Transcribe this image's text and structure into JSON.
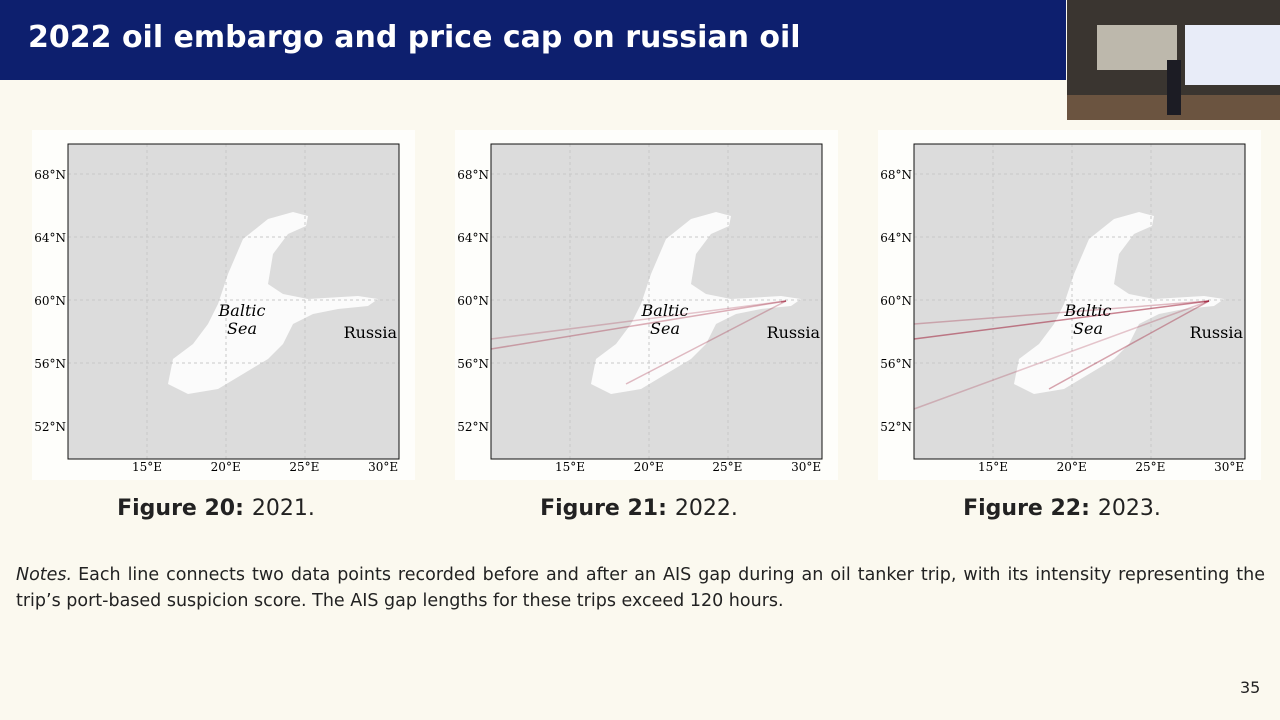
{
  "title": "2022 oil embargo and price cap on russian oil",
  "figures": [
    {
      "lat_labels": [
        "68°N",
        "64°N",
        "60°N",
        "56°N",
        "52°N"
      ],
      "lon_labels": [
        "15°E",
        "20°E",
        "25°E",
        "30°E"
      ],
      "sea_label": [
        "Baltic",
        "Sea"
      ],
      "country_label": "Russia",
      "caption": {
        "label": "Figure 20:",
        "text": "2021."
      }
    },
    {
      "lat_labels": [
        "68°N",
        "64°N",
        "60°N",
        "56°N",
        "52°N"
      ],
      "lon_labels": [
        "15°E",
        "20°E",
        "25°E",
        "30°E"
      ],
      "sea_label": [
        "Baltic",
        "Sea"
      ],
      "country_label": "Russia",
      "caption": {
        "label": "Figure 21:",
        "text": "2022."
      }
    },
    {
      "lat_labels": [
        "68°N",
        "64°N",
        "60°N",
        "56°N",
        "52°N"
      ],
      "lon_labels": [
        "15°E",
        "20°E",
        "25°E",
        "30°E"
      ],
      "sea_label": [
        "Baltic",
        "Sea"
      ],
      "country_label": "Russia",
      "caption": {
        "label": "Figure 22:",
        "text": "2023."
      }
    }
  ],
  "notes": {
    "label": "Notes.",
    "text": "Each line connects two data points recorded before and after an AIS gap during an oil tanker trip, with its intensity representing the trip’s port-based suspicion score. The AIS gap lengths for these trips exceed 120 hours."
  },
  "page_number": "35"
}
